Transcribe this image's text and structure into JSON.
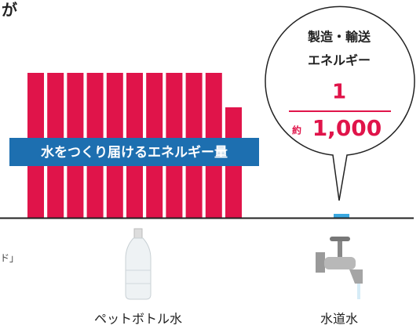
{
  "header": {
    "title_fragment": "が"
  },
  "side_note": "ド」",
  "bubble": {
    "line1": "製造・輸送",
    "line2": "エネルギー",
    "numerator": "1",
    "approx": "約",
    "denominator": "1,000"
  },
  "banner": "水をつくり届けるエネルギー量",
  "items": [
    {
      "label": "ペットボトル水"
    },
    {
      "label": "水道水"
    }
  ]
}
